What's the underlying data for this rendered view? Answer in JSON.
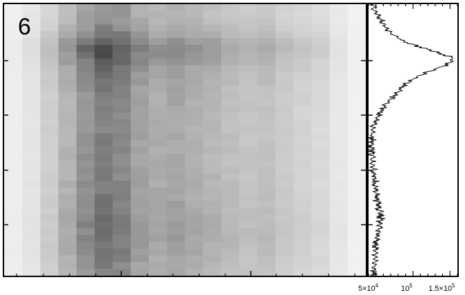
{
  "panel": {
    "label": "6"
  },
  "colors": {
    "background": "#ffffff",
    "frame": "#000000",
    "profile_line": "#000000",
    "image_dark": "#222222",
    "image_light": "#f4f4f4"
  },
  "chart_data": [
    {
      "type": "heatmap",
      "title": "",
      "xlabel": "",
      "ylabel": "",
      "grid": false,
      "colormap": "grayscale (dark = high intensity)",
      "columns": 20,
      "rows": 40,
      "x_tick_labels": [],
      "y_tick_labels": [],
      "column_profile": [
        0.05,
        0.12,
        0.28,
        0.48,
        0.7,
        0.85,
        0.78,
        0.6,
        0.52,
        0.56,
        0.5,
        0.45,
        0.4,
        0.36,
        0.38,
        0.3,
        0.25,
        0.2,
        0.1,
        0.03
      ],
      "row_profile": [
        0.1,
        0.12,
        0.18,
        0.3,
        0.52,
        0.82,
        1.0,
        0.95,
        0.78,
        0.62,
        0.52,
        0.45,
        0.4,
        0.36,
        0.34,
        0.32,
        0.31,
        0.3,
        0.3,
        0.31,
        0.32,
        0.33,
        0.34,
        0.35,
        0.36,
        0.37,
        0.38,
        0.4,
        0.42,
        0.45,
        0.48,
        0.52,
        0.55,
        0.56,
        0.54,
        0.5,
        0.45,
        0.4,
        0.35,
        0.3
      ]
    },
    {
      "type": "line",
      "title": "",
      "xlabel": "",
      "ylabel": "",
      "orientation": "vertical profile (intensity on x, position on y)",
      "grid": false,
      "xlim": [
        40000,
        160000
      ],
      "x_ticks": [
        {
          "value": 50000,
          "mantissa": "5×10",
          "exponent": "4"
        },
        {
          "value": 100000,
          "mantissa": "10",
          "exponent": "5"
        },
        {
          "value": 150000,
          "mantissa": "1.5×10",
          "exponent": "5"
        }
      ],
      "ylim": [
        0,
        1
      ],
      "series": [
        {
          "y": [
            0.0,
            0.025,
            0.05,
            0.075,
            0.1,
            0.125,
            0.15,
            0.175,
            0.2,
            0.225,
            0.25,
            0.275,
            0.3,
            0.325,
            0.35,
            0.375,
            0.4,
            0.425,
            0.45,
            0.475,
            0.5,
            0.525,
            0.55,
            0.575,
            0.6,
            0.625,
            0.65,
            0.675,
            0.7,
            0.725,
            0.75,
            0.775,
            0.8,
            0.825,
            0.85,
            0.875,
            0.9,
            0.925,
            0.95,
            0.975,
            1.0
          ],
          "x": [
            46000,
            48000,
            54000,
            60000,
            68000,
            80000,
            100000,
            130000,
            155000,
            145000,
            120000,
            100000,
            88000,
            78000,
            70000,
            62000,
            55000,
            50000,
            47000,
            45000,
            44000,
            44000,
            45000,
            46000,
            46000,
            47000,
            48000,
            49000,
            50000,
            52000,
            54000,
            56000,
            56000,
            55000,
            53000,
            51000,
            50000,
            49000,
            48000,
            47000,
            47000
          ]
        }
      ]
    }
  ]
}
